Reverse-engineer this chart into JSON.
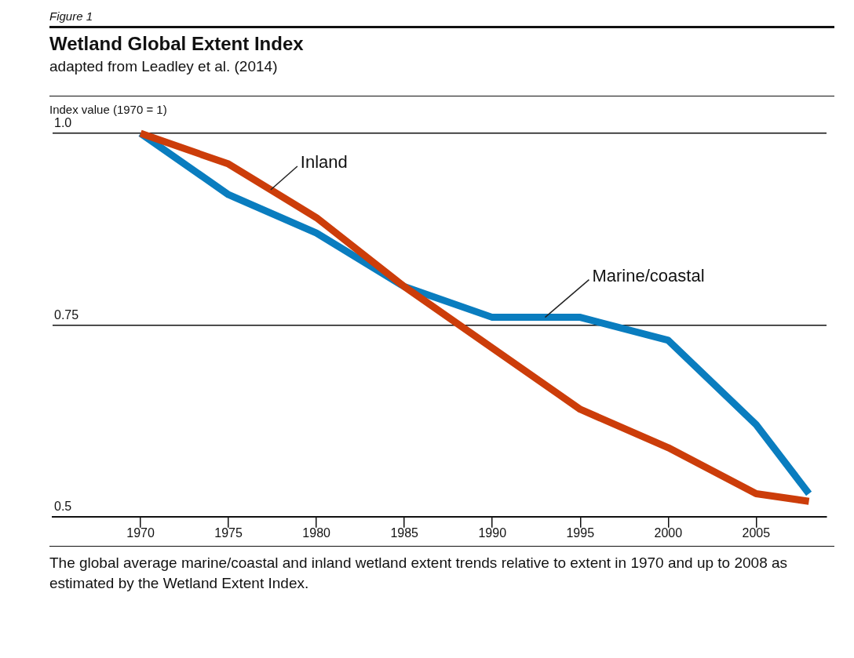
{
  "chart_data": {
    "type": "line",
    "title": "Wetland Global Extent Index",
    "subtitle": "adapted from Leadley et al. (2014)",
    "ylabel": "Index value (1970 = 1)",
    "annotations": [
      "Figure 1",
      "The global average marine/coastal and inland wetland extent trends relative to extent in 1970 and up to 2008 as estimated by the Wetland Extent Index."
    ],
    "x": [
      1970,
      1975,
      1980,
      1985,
      1990,
      1995,
      2000,
      2005,
      2008
    ],
    "series": [
      {
        "name": "Inland",
        "color": "#cc3d0a",
        "values": [
          1.0,
          0.96,
          0.89,
          0.8,
          0.72,
          0.64,
          0.59,
          0.53,
          0.52
        ]
      },
      {
        "name": "Marine/coastal",
        "color": "#0a7dbf",
        "values": [
          1.0,
          0.92,
          0.87,
          0.8,
          0.76,
          0.76,
          0.73,
          0.62,
          0.53
        ]
      }
    ],
    "xlim": [
      1965,
      2009
    ],
    "xticks": [
      1970,
      1975,
      1980,
      1985,
      1990,
      1995,
      2000,
      2005
    ],
    "ylim": [
      0.5,
      1.0
    ],
    "yticks": [
      {
        "value": 0.5,
        "label": "0.5"
      },
      {
        "value": 0.75,
        "label": "0.75"
      },
      {
        "value": 1.0,
        "label": "1.0"
      }
    ],
    "grid": "y",
    "legend": false,
    "line_style": "solid",
    "marker": "none"
  }
}
